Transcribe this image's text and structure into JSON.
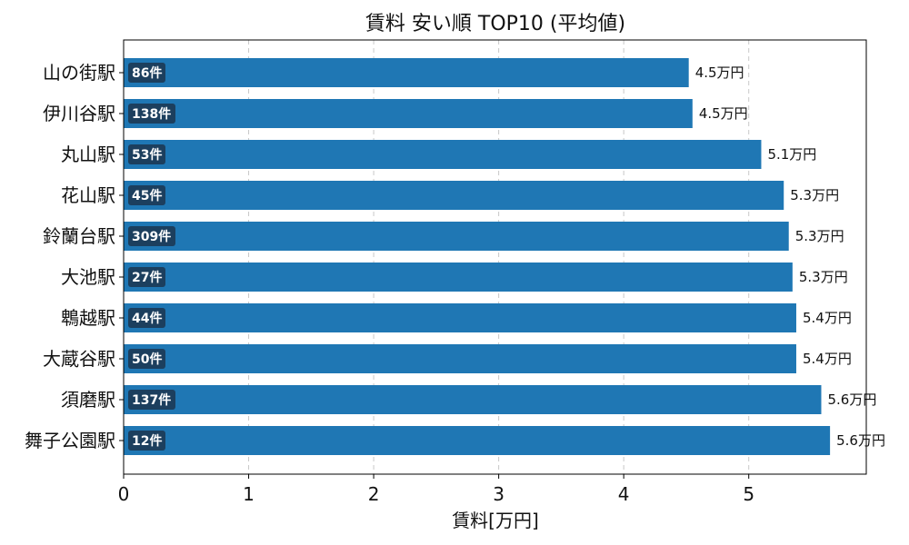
{
  "chart_data": {
    "type": "bar",
    "orientation": "horizontal",
    "title": "賃料 安い順 TOP10 (平均値)",
    "xlabel": "賃料[万円]",
    "ylabel": "",
    "xlim": [
      0,
      5.94
    ],
    "xticks": [
      "0",
      "1",
      "2",
      "3",
      "4",
      "5"
    ],
    "grid": "x-dashed",
    "bar_color": "#1f77b4",
    "count_badge_color": "#1c3f5e",
    "categories": [
      "山の街駅",
      "伊川谷駅",
      "丸山駅",
      "花山駅",
      "鈴蘭台駅",
      "大池駅",
      "鵯越駅",
      "大蔵谷駅",
      "須磨駅",
      "舞子公園駅"
    ],
    "values": [
      4.52,
      4.55,
      5.1,
      5.28,
      5.32,
      5.35,
      5.38,
      5.38,
      5.58,
      5.65
    ],
    "value_labels": [
      "4.5万円",
      "4.5万円",
      "5.1万円",
      "5.3万円",
      "5.3万円",
      "5.3万円",
      "5.4万円",
      "5.4万円",
      "5.6万円",
      "5.6万円"
    ],
    "counts": [
      "86件",
      "138件",
      "53件",
      "45件",
      "309件",
      "27件",
      "44件",
      "50件",
      "137件",
      "12件"
    ]
  }
}
